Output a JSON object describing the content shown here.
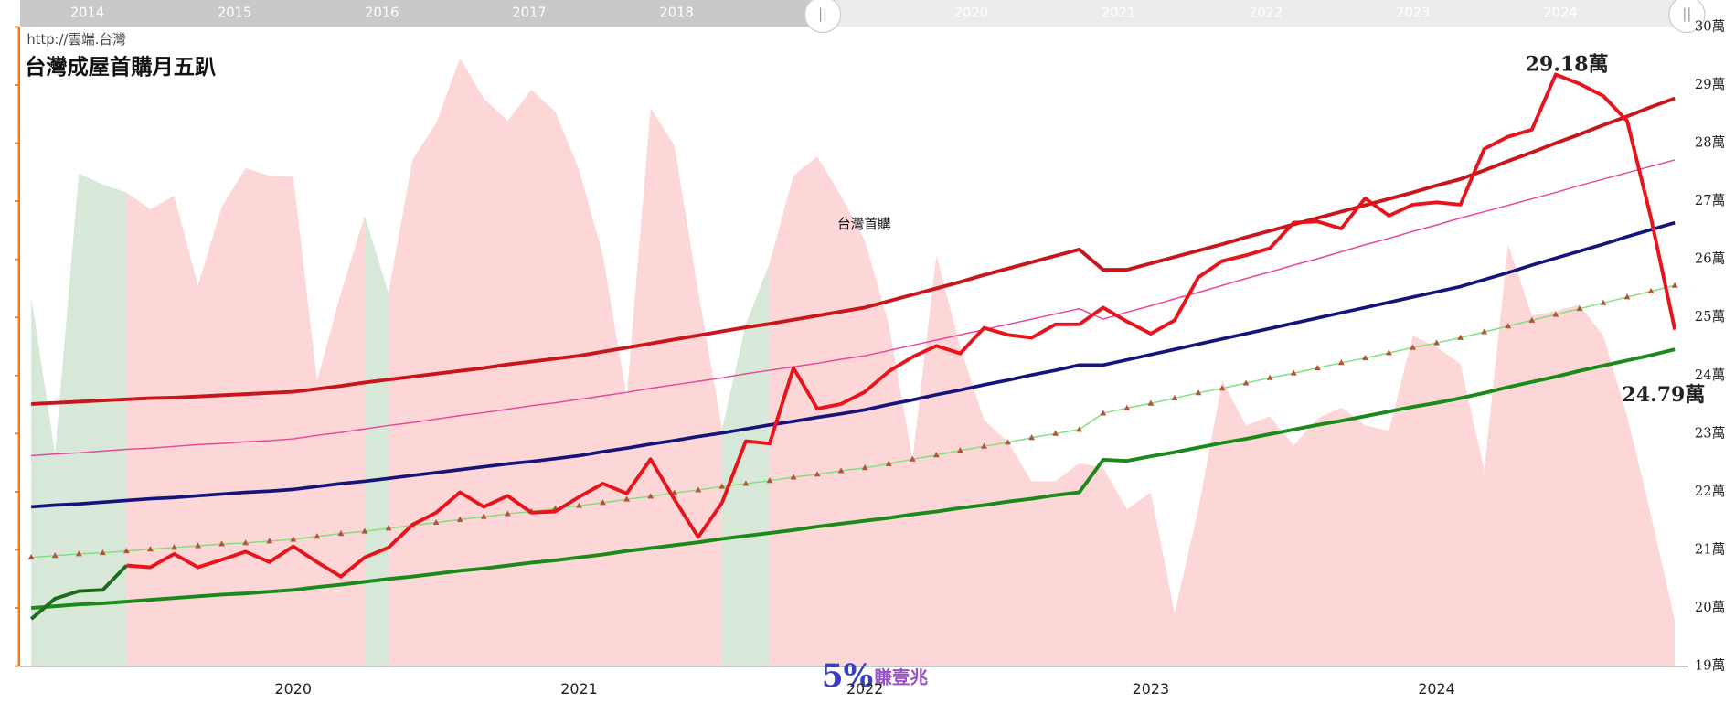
{
  "chart_data": {
    "type": "line",
    "title": "台灣成屋首購月五趴",
    "source": "http://雲端.台灣",
    "annotation": "台灣首購",
    "watermark": [
      "5%",
      "賺壹兆"
    ],
    "navigator_labels": [
      "2014",
      "2015",
      "2016",
      "2017",
      "2018",
      "2020",
      "2021",
      "2022",
      "2023",
      "2024"
    ],
    "categories": [
      null,
      null,
      null,
      null,
      null,
      null,
      null,
      null,
      null,
      null,
      null,
      "2020",
      null,
      null,
      null,
      null,
      null,
      null,
      null,
      null,
      null,
      null,
      null,
      "2021",
      null,
      null,
      null,
      null,
      null,
      null,
      null,
      null,
      null,
      null,
      null,
      "2022",
      null,
      null,
      null,
      null,
      null,
      null,
      null,
      null,
      null,
      null,
      null,
      "2023",
      null,
      null,
      null,
      null,
      null,
      null,
      null,
      null,
      null,
      null,
      null,
      "2024",
      null,
      null,
      null,
      null,
      null,
      null,
      null,
      null,
      null,
      null
    ],
    "ylim": [
      19,
      30
    ],
    "yticks": [
      {
        "value": 19,
        "label": "19萬"
      },
      {
        "value": 20,
        "label": "20萬"
      },
      {
        "value": 21,
        "label": "21萬"
      },
      {
        "value": 22,
        "label": "22萬"
      },
      {
        "value": 23,
        "label": "23萬"
      },
      {
        "value": 24,
        "label": "24萬"
      },
      {
        "value": 25,
        "label": "25萬"
      },
      {
        "value": 26,
        "label": "26萬"
      },
      {
        "value": 27,
        "label": "27萬"
      },
      {
        "value": 28,
        "label": "28萬"
      },
      {
        "value": 29,
        "label": "29萬"
      },
      {
        "value": 30,
        "label": "30萬"
      }
    ],
    "axis_color": "#f07a1a",
    "series": [
      {
        "style": "area",
        "colors": [
          "#d8e8d8",
          "#d8e8d8",
          "#d8e8d8",
          "#d8e8d8",
          "#fdd6d8",
          "#fdd6d8",
          "#fdd6d8",
          "#fdd6d8",
          "#fdd6d8",
          "#fdd6d8",
          "#fdd6d8",
          "#fdd6d8",
          "#fdd6d8",
          "#fdd6d8",
          "#d8e8d8",
          "#fdd6d8",
          "#fdd6d8",
          "#fdd6d8",
          "#fdd6d8",
          "#fdd6d8",
          "#fdd6d8",
          "#fdd6d8",
          "#fdd6d8",
          "#fdd6d8",
          "#fdd6d8",
          "#fdd6d8",
          "#fdd6d8",
          "#fdd6d8",
          "#fdd6d8",
          "#d8e8d8",
          "#d8e8d8",
          "#fdd6d8",
          "#fdd6d8",
          "#fdd6d8",
          "#fdd6d8",
          "#fdd6d8",
          "#fdd6d8",
          "#fdd6d8",
          "#fdd6d8",
          "#fdd6d8",
          "#fdd6d8",
          "#fdd6d8",
          "#fdd6d8",
          "#fdd6d8",
          "#fdd6d8",
          "#fdd6d8",
          "#fdd6d8",
          "#fdd6d8",
          "#fdd6d8",
          "#fdd6d8",
          "#fdd6d8",
          "#fdd6d8",
          "#fdd6d8",
          "#fdd6d8",
          "#fdd6d8",
          "#fdd6d8",
          "#fdd6d8",
          "#fdd6d8",
          "#fdd6d8",
          "#fdd6d8",
          "#fdd6d8",
          "#fdd6d8",
          "#fdd6d8",
          "#fdd6d8",
          "#fdd6d8",
          "#fdd6d8",
          "#fdd6d8",
          "#fdd6d8",
          "#fdd6d8",
          "#fdd6d8"
        ],
        "values": [
          25.36,
          22.66,
          27.48,
          27.29,
          27.15,
          26.86,
          27.09,
          25.55,
          26.9,
          27.57,
          27.44,
          27.42,
          23.91,
          25.42,
          26.75,
          25.42,
          27.71,
          28.34,
          29.46,
          28.77,
          28.38,
          28.92,
          28.54,
          27.54,
          26.07,
          23.62,
          28.6,
          27.96,
          25.45,
          23.08,
          24.88,
          25.94,
          27.44,
          27.77,
          27.09,
          26.32,
          24.88,
          22.56,
          26.07,
          24.49,
          23.24,
          22.85,
          22.18,
          22.18,
          22.49,
          22.41,
          21.7,
          21.99,
          19.91,
          21.7,
          23.91,
          23.14,
          23.3,
          22.8,
          23.26,
          23.45,
          23.14,
          23.05,
          24.68,
          24.49,
          24.2,
          22.37,
          26.26,
          25.03,
          25.11,
          25.22,
          24.68,
          23.3,
          21.6,
          19.77
        ]
      },
      {
        "style": "line",
        "color": "#e8489a",
        "width": 1.2,
        "values": [
          22.62,
          22.65,
          22.67,
          22.7,
          22.73,
          22.75,
          22.78,
          22.81,
          22.83,
          22.86,
          22.88,
          22.91,
          22.97,
          23.02,
          23.08,
          23.14,
          23.19,
          23.25,
          23.31,
          23.36,
          23.42,
          23.48,
          23.53,
          23.59,
          23.65,
          23.71,
          23.78,
          23.84,
          23.9,
          23.96,
          24.03,
          24.09,
          24.15,
          24.21,
          24.28,
          24.34,
          24.43,
          24.52,
          24.61,
          24.7,
          24.79,
          24.88,
          24.97,
          25.06,
          25.15,
          24.97,
          25.09,
          25.2,
          25.32,
          25.43,
          25.55,
          25.67,
          25.78,
          25.9,
          26.01,
          26.13,
          26.25,
          26.36,
          26.48,
          26.59,
          26.71,
          26.82,
          26.93,
          27.04,
          27.15,
          27.27,
          27.38,
          27.49,
          27.6,
          27.71
        ]
      },
      {
        "style": "line",
        "color": "#7fe07f",
        "width": 1.2,
        "marker": "triangle",
        "marker_color": "#b5523a",
        "values": [
          20.87,
          20.9,
          20.93,
          20.95,
          20.98,
          21.01,
          21.04,
          21.07,
          21.1,
          21.12,
          21.15,
          21.18,
          21.23,
          21.28,
          21.32,
          21.37,
          21.42,
          21.47,
          21.52,
          21.57,
          21.62,
          21.66,
          21.71,
          21.76,
          21.81,
          21.87,
          21.92,
          21.98,
          22.03,
          22.09,
          22.14,
          22.19,
          22.25,
          22.3,
          22.36,
          22.41,
          22.48,
          22.56,
          22.63,
          22.71,
          22.78,
          22.85,
          22.93,
          23.0,
          23.07,
          23.35,
          23.44,
          23.52,
          23.61,
          23.7,
          23.78,
          23.87,
          23.96,
          24.04,
          24.13,
          24.22,
          24.3,
          24.39,
          24.48,
          24.56,
          24.65,
          24.75,
          24.85,
          24.95,
          25.05,
          25.15,
          25.25,
          25.35,
          25.45,
          25.55
        ]
      },
      {
        "style": "line",
        "color": "#14147a",
        "width": 3,
        "values": [
          21.74,
          21.77,
          21.79,
          21.82,
          21.85,
          21.88,
          21.9,
          21.93,
          21.96,
          21.99,
          22.01,
          22.04,
          22.09,
          22.14,
          22.18,
          22.23,
          22.28,
          22.33,
          22.38,
          22.43,
          22.48,
          22.52,
          22.57,
          22.62,
          22.69,
          22.75,
          22.82,
          22.88,
          22.95,
          23.01,
          23.08,
          23.15,
          23.21,
          23.28,
          23.34,
          23.41,
          23.5,
          23.58,
          23.67,
          23.75,
          23.84,
          23.92,
          24.01,
          24.09,
          24.18,
          24.18,
          24.27,
          24.36,
          24.45,
          24.54,
          24.63,
          24.72,
          24.81,
          24.9,
          24.99,
          25.08,
          25.17,
          25.26,
          25.35,
          25.44,
          25.53,
          25.65,
          25.77,
          25.9,
          26.02,
          26.14,
          26.26,
          26.39,
          26.51,
          26.63
        ]
      },
      {
        "style": "line",
        "color": "#c8161d",
        "width": 3.2,
        "values": [
          23.51,
          23.53,
          23.55,
          23.57,
          23.59,
          23.61,
          23.62,
          23.64,
          23.66,
          23.68,
          23.7,
          23.72,
          23.77,
          23.82,
          23.88,
          23.93,
          23.98,
          24.03,
          24.08,
          24.13,
          24.19,
          24.24,
          24.29,
          24.34,
          24.41,
          24.48,
          24.55,
          24.62,
          24.69,
          24.76,
          24.83,
          24.89,
          24.96,
          25.03,
          25.1,
          25.17,
          25.28,
          25.39,
          25.5,
          25.61,
          25.73,
          25.84,
          25.95,
          26.06,
          26.17,
          25.82,
          25.82,
          25.93,
          26.04,
          26.15,
          26.26,
          26.38,
          26.49,
          26.6,
          26.71,
          26.82,
          26.93,
          27.04,
          27.15,
          27.27,
          27.38,
          27.53,
          27.69,
          27.84,
          28.0,
          28.15,
          28.31,
          28.46,
          28.62,
          28.77
        ]
      },
      {
        "style": "line",
        "color": "#1a8a1a",
        "width": 3.2,
        "values": [
          20.0,
          20.03,
          20.06,
          20.08,
          20.11,
          20.14,
          20.17,
          20.2,
          20.23,
          20.25,
          20.28,
          20.31,
          20.36,
          20.4,
          20.45,
          20.5,
          20.54,
          20.59,
          20.64,
          20.68,
          20.73,
          20.78,
          20.82,
          20.87,
          20.92,
          20.98,
          21.03,
          21.08,
          21.13,
          21.19,
          21.24,
          21.29,
          21.34,
          21.4,
          21.45,
          21.5,
          21.55,
          21.61,
          21.66,
          21.72,
          21.77,
          21.83,
          21.88,
          21.94,
          21.99,
          22.55,
          22.53,
          22.61,
          22.68,
          22.76,
          22.84,
          22.91,
          22.99,
          23.07,
          23.15,
          23.22,
          23.3,
          23.38,
          23.46,
          23.53,
          23.61,
          23.7,
          23.8,
          23.89,
          23.98,
          24.08,
          24.17,
          24.26,
          24.35,
          24.45
        ]
      },
      {
        "style": "line",
        "color": "#1e6b1e",
        "width": 3.2,
        "values": [
          19.81,
          20.16,
          20.29,
          20.31,
          20.73,
          null,
          null,
          null,
          null,
          null,
          null,
          null,
          null,
          null,
          null,
          null,
          null,
          null,
          null,
          null,
          null,
          null,
          null,
          null,
          null,
          null,
          null,
          null,
          null,
          null,
          null,
          null,
          null,
          null,
          null,
          null,
          null,
          null,
          null,
          null,
          null,
          null,
          null,
          null,
          null,
          null,
          null,
          null,
          null,
          null,
          null,
          null,
          null,
          null,
          null,
          null,
          null,
          null,
          null,
          null,
          null,
          null,
          null,
          null,
          null,
          null,
          null,
          null,
          null,
          null
        ]
      },
      {
        "style": "line",
        "color": "#e8141c",
        "width": 3.2,
        "values": [
          null,
          null,
          null,
          null,
          20.73,
          20.7,
          20.93,
          20.7,
          20.83,
          20.97,
          20.79,
          21.06,
          20.79,
          20.54,
          20.87,
          21.04,
          21.43,
          21.64,
          21.99,
          21.74,
          21.93,
          21.64,
          21.66,
          21.91,
          22.14,
          21.97,
          22.56,
          21.87,
          21.22,
          21.81,
          22.87,
          22.83,
          24.13,
          23.43,
          23.51,
          23.72,
          24.07,
          24.32,
          24.51,
          24.38,
          24.82,
          24.7,
          24.65,
          24.88,
          24.88,
          25.17,
          24.93,
          24.72,
          24.95,
          25.69,
          25.97,
          26.07,
          26.19,
          26.63,
          26.65,
          26.53,
          27.05,
          26.75,
          26.94,
          26.98,
          26.94,
          27.9,
          28.11,
          28.23,
          29.18,
          29.02,
          28.81,
          28.38,
          26.71,
          24.79
        ],
        "value_labels": [
          null,
          null,
          null,
          null,
          null,
          null,
          null,
          null,
          null,
          null,
          null,
          null,
          null,
          null,
          null,
          null,
          null,
          null,
          null,
          null,
          null,
          null,
          null,
          null,
          null,
          null,
          null,
          null,
          null,
          null,
          null,
          null,
          null,
          null,
          null,
          null,
          null,
          null,
          null,
          null,
          null,
          null,
          null,
          null,
          null,
          null,
          null,
          null,
          null,
          null,
          null,
          null,
          null,
          null,
          null,
          null,
          null,
          null,
          null,
          null,
          null,
          null,
          null,
          null,
          "29.18萬",
          null,
          null,
          null,
          null,
          "24.79萬"
        ]
      }
    ]
  }
}
